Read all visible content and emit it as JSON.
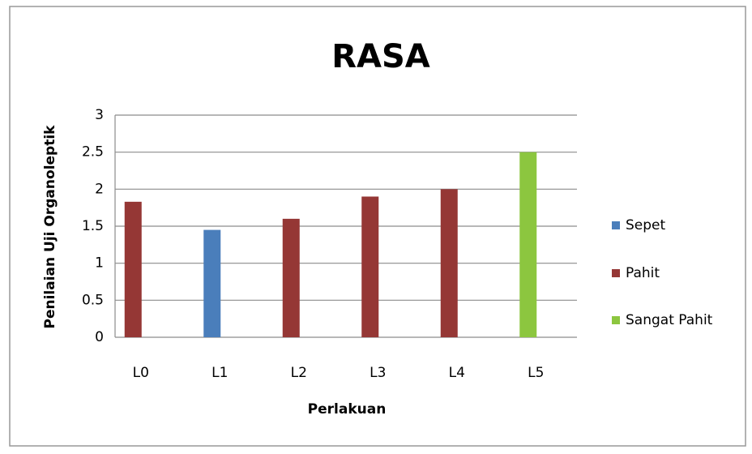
{
  "chart_data": {
    "type": "bar",
    "title": "RASA",
    "x_label": "Perlakuan",
    "y_label": "Penilaian Uji Organoleptik",
    "categories": [
      "L0",
      "L1",
      "L2",
      "L3",
      "L4",
      "L5"
    ],
    "series": [
      {
        "name": "Sepet",
        "color": "#4a7ebb",
        "values": [
          null,
          1.45,
          null,
          null,
          null,
          null
        ]
      },
      {
        "name": "Pahit",
        "color": "#953735",
        "values": [
          1.83,
          null,
          1.6,
          1.9,
          2.0,
          null
        ]
      },
      {
        "name": "Sangat Pahit",
        "color": "#8cc63f",
        "values": [
          null,
          null,
          null,
          null,
          null,
          2.5
        ]
      }
    ],
    "ylim": [
      0,
      3
    ],
    "yticks": [
      0,
      0.5,
      1,
      1.5,
      2,
      2.5,
      3
    ],
    "grid": true,
    "legend": "right"
  }
}
